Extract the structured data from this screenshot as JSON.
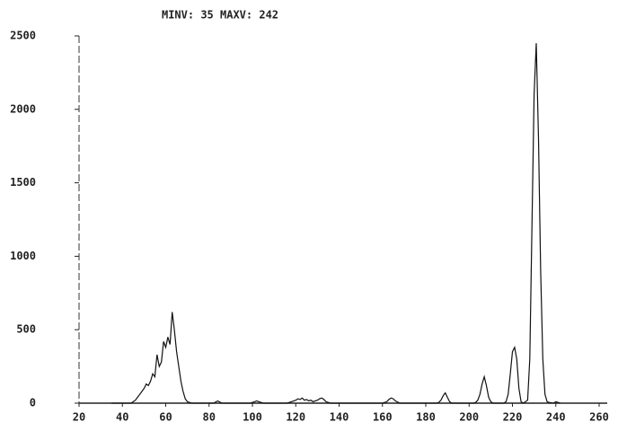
{
  "chart_data": {
    "type": "line",
    "title": "MINV: 35 MAXV: 242",
    "color": "#111111",
    "xlim": [
      20,
      260
    ],
    "xticks": [
      20,
      40,
      60,
      80,
      100,
      120,
      140,
      160,
      180,
      200,
      220,
      240,
      260
    ],
    "ylim": [
      0,
      2500
    ],
    "yticks": [
      0,
      500,
      1000,
      1500,
      2000,
      2500
    ],
    "x": [
      35,
      44,
      45,
      46,
      47,
      48,
      49,
      50,
      51,
      52,
      53,
      54,
      55,
      56,
      57,
      58,
      59,
      60,
      61,
      62,
      63,
      64,
      65,
      66,
      67,
      68,
      69,
      70,
      72,
      82,
      84,
      86,
      99,
      101,
      102,
      103,
      105,
      116,
      118,
      120,
      121,
      122,
      123,
      124,
      125,
      126,
      127,
      128,
      129,
      130,
      131,
      132,
      133,
      134,
      136,
      160,
      162,
      163,
      164,
      165,
      166,
      168,
      185,
      186,
      187,
      188,
      189,
      190,
      191,
      192,
      202,
      203,
      204,
      205,
      206,
      207,
      208,
      209,
      210,
      211,
      216,
      217,
      218,
      219,
      220,
      221,
      222,
      223,
      224,
      225,
      227,
      228,
      229,
      230,
      231,
      232,
      233,
      234,
      235,
      236,
      237,
      239,
      240,
      241,
      242
    ],
    "values": [
      0,
      0,
      10,
      20,
      40,
      60,
      80,
      100,
      130,
      120,
      150,
      200,
      180,
      330,
      250,
      280,
      420,
      380,
      450,
      400,
      620,
      500,
      350,
      250,
      150,
      80,
      30,
      10,
      0,
      0,
      15,
      0,
      0,
      10,
      15,
      10,
      0,
      0,
      10,
      20,
      30,
      25,
      35,
      20,
      25,
      15,
      20,
      10,
      15,
      20,
      30,
      35,
      25,
      10,
      0,
      0,
      10,
      25,
      35,
      30,
      15,
      0,
      0,
      5,
      20,
      50,
      70,
      40,
      10,
      0,
      0,
      5,
      20,
      60,
      130,
      180,
      120,
      40,
      10,
      0,
      0,
      10,
      60,
      200,
      350,
      380,
      300,
      100,
      10,
      0,
      20,
      300,
      1200,
      2100,
      2450,
      1800,
      900,
      300,
      60,
      10,
      5,
      0,
      10,
      5,
      0
    ]
  }
}
